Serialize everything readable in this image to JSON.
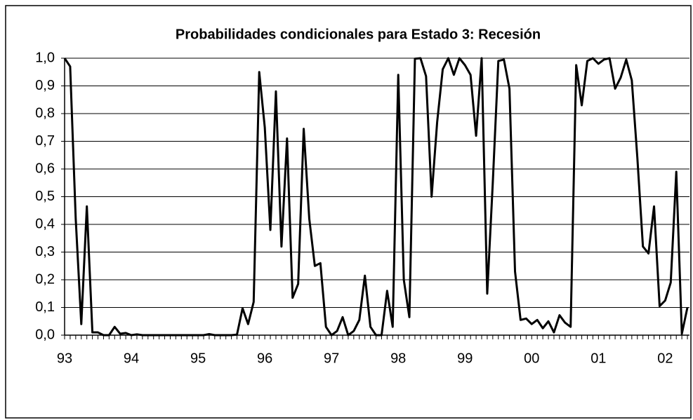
{
  "chart_data": {
    "type": "line",
    "title": "Probabilidades condicionales para Estado 3: Recesión",
    "categories": [
      "93",
      null,
      null,
      null,
      null,
      null,
      null,
      null,
      null,
      null,
      null,
      null,
      "94",
      null,
      null,
      null,
      null,
      null,
      null,
      null,
      null,
      null,
      null,
      null,
      "95",
      null,
      null,
      null,
      null,
      null,
      null,
      null,
      null,
      null,
      null,
      null,
      "96",
      null,
      null,
      null,
      null,
      null,
      null,
      null,
      null,
      null,
      null,
      null,
      "97",
      null,
      null,
      null,
      null,
      null,
      null,
      null,
      null,
      null,
      null,
      null,
      "98",
      null,
      null,
      null,
      null,
      null,
      null,
      null,
      null,
      null,
      null,
      null,
      "99",
      null,
      null,
      null,
      null,
      null,
      null,
      null,
      null,
      null,
      null,
      null,
      "00",
      null,
      null,
      null,
      null,
      null,
      null,
      null,
      null,
      null,
      null,
      null,
      "01",
      null,
      null,
      null,
      null,
      null,
      null,
      null,
      null,
      null,
      null,
      null,
      "02",
      null,
      null,
      null,
      null
    ],
    "series": [
      {
        "name": "Estado 3",
        "color": "#000000",
        "values": [
          1.0,
          0.97,
          0.42,
          0.04,
          0.465,
          0.01,
          0.01,
          0.0,
          0.0,
          0.03,
          0.005,
          0.008,
          0.0,
          0.003,
          0.0,
          0.0,
          0.0,
          0.0,
          0.0,
          0.0,
          0.0,
          0.0,
          0.0,
          0.0,
          0.0,
          0.0,
          0.004,
          0.0,
          0.0,
          0.0,
          0.0,
          0.002,
          0.097,
          0.04,
          0.12,
          0.95,
          0.75,
          0.38,
          0.88,
          0.32,
          0.71,
          0.135,
          0.185,
          0.745,
          0.42,
          0.25,
          0.26,
          0.03,
          0.0,
          0.015,
          0.065,
          0.0,
          0.015,
          0.055,
          0.215,
          0.03,
          0.0,
          0.0,
          0.16,
          0.03,
          0.94,
          0.2,
          0.065,
          0.998,
          1.0,
          0.935,
          0.5,
          0.77,
          0.96,
          1.0,
          0.94,
          1.0,
          0.975,
          0.94,
          0.72,
          1.0,
          0.15,
          0.55,
          0.99,
          0.995,
          0.89,
          0.23,
          0.055,
          0.06,
          0.04,
          0.055,
          0.025,
          0.05,
          0.01,
          0.072,
          0.045,
          0.03,
          0.975,
          0.83,
          0.99,
          1.0,
          0.98,
          0.995,
          1.0,
          0.89,
          0.93,
          0.995,
          0.92,
          0.64,
          0.32,
          0.295,
          0.465,
          0.105,
          0.125,
          0.19,
          0.59,
          0.005,
          0.1
        ]
      }
    ],
    "ylim": [
      0,
      1
    ],
    "yticks": [
      {
        "value": 0,
        "label": "0,0"
      },
      {
        "value": 0.1,
        "label": "0,1"
      },
      {
        "value": 0.2,
        "label": "0,2"
      },
      {
        "value": 0.3,
        "label": "0,3"
      },
      {
        "value": 0.4,
        "label": "0,4"
      },
      {
        "value": 0.5,
        "label": "0,5"
      },
      {
        "value": 0.6,
        "label": "0,6"
      },
      {
        "value": 0.7,
        "label": "0,7"
      },
      {
        "value": 0.8,
        "label": "0,8"
      },
      {
        "value": 0.9,
        "label": "0,9"
      },
      {
        "value": 1,
        "label": "1,0"
      }
    ],
    "grid": true
  }
}
